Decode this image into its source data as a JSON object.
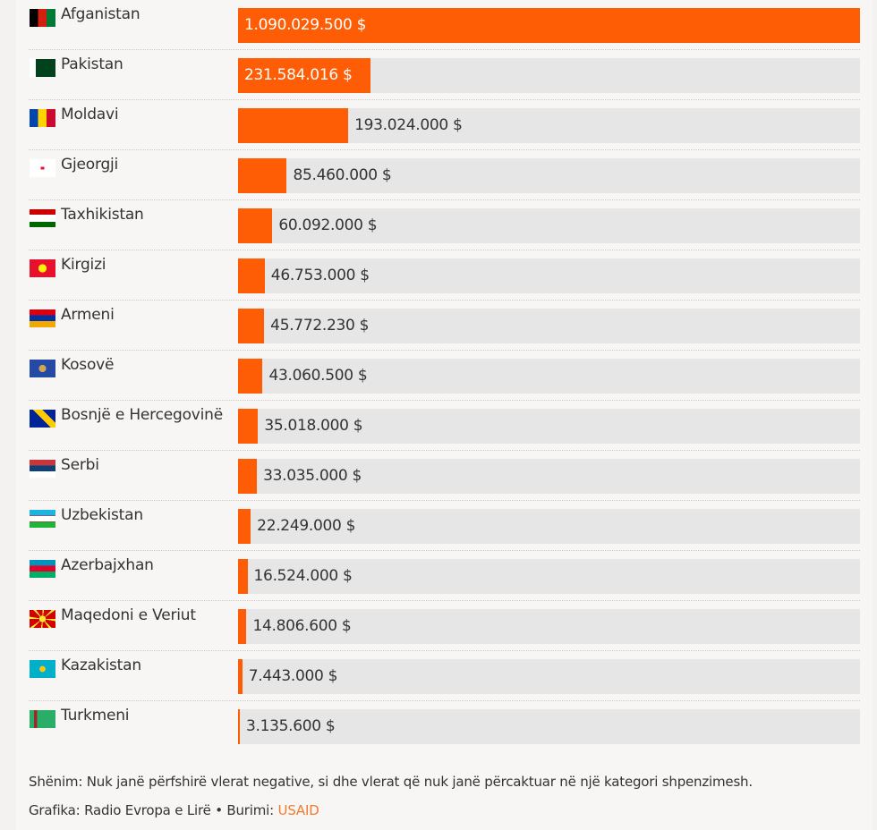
{
  "chart_data": {
    "type": "bar",
    "orientation": "horizontal",
    "unit": "$",
    "xlim": [
      0,
      1090029500
    ],
    "categories": [
      "Afganistan",
      "Pakistan",
      "Moldavi",
      "Gjeorgji",
      "Taxhikistan",
      "Kirgizi",
      "Armeni",
      "Kosovë",
      "Bosnjë e Hercegovinë",
      "Serbi",
      "Uzbekistan",
      "Azerbajxhan",
      "Maqedoni e Veriut",
      "Kazakistan",
      "Turkmeni"
    ],
    "values": [
      1090029500,
      231584016,
      193024000,
      85460000,
      60092000,
      46753000,
      45772230,
      43060500,
      35018000,
      33035000,
      22249000,
      16524000,
      14806600,
      7443000,
      3135600
    ],
    "labels": [
      "1.090.029.500 $",
      "231.584.016 $",
      "193.024.000 $",
      "85.460.000 $",
      "60.092.000 $",
      "46.753.000 $",
      "45.772.230 $",
      "43.060.500 $",
      "35.018.000 $",
      "33.035.000 $",
      "22.249.000 $",
      "16.524.000 $",
      "14.806.600 $",
      "7.443.000 $",
      "3.135.600 $"
    ],
    "flags": [
      "flag-afghanistan-icon",
      "flag-pakistan-icon",
      "flag-moldova-icon",
      "flag-georgia-icon",
      "flag-tajikistan-icon",
      "flag-kyrgyzstan-icon",
      "flag-armenia-icon",
      "flag-kosovo-icon",
      "flag-bosnia-icon",
      "flag-serbia-icon",
      "flag-uzbekistan-icon",
      "flag-azerbaijan-icon",
      "flag-north-macedonia-icon",
      "flag-kazakhstan-icon",
      "flag-turkmenistan-icon"
    ],
    "colors": {
      "bar": "#ff5d05",
      "track": "#e6e6e6"
    }
  },
  "footer": {
    "note": "Shënim: Nuk janë përfshirë vlerat negative, si dhe vlerat që nuk janë përcaktuar në një kategori shpenzimesh.",
    "credit": "Grafika: Radio Evropa e Lirë • Burimi: ",
    "source": "USAID"
  }
}
